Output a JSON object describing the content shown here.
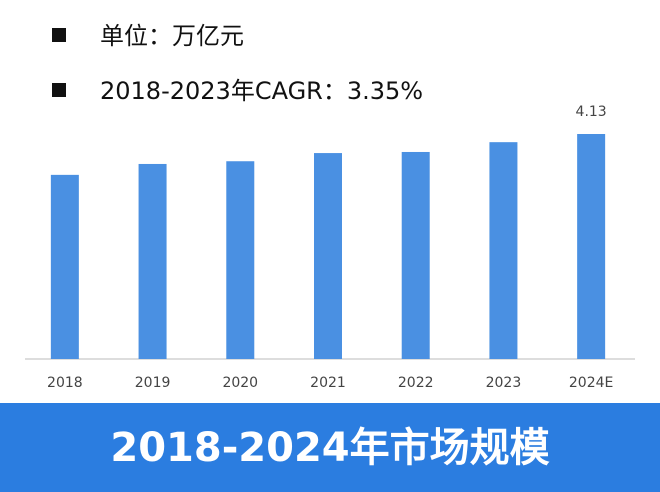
{
  "chart_data": {
    "type": "bar",
    "title": "2018-2024年市场规模",
    "notes": [
      "单位：万亿元",
      "2018-2023年CAGR：3.35%"
    ],
    "categories": [
      "2018",
      "2019",
      "2020",
      "2021",
      "2022",
      "2023",
      "2024E"
    ],
    "values": [
      3.38,
      3.58,
      3.63,
      3.78,
      3.8,
      3.98,
      4.13
    ],
    "value_labels": [
      null,
      null,
      null,
      null,
      null,
      null,
      "4.13"
    ],
    "color": "#4a90e2"
  }
}
